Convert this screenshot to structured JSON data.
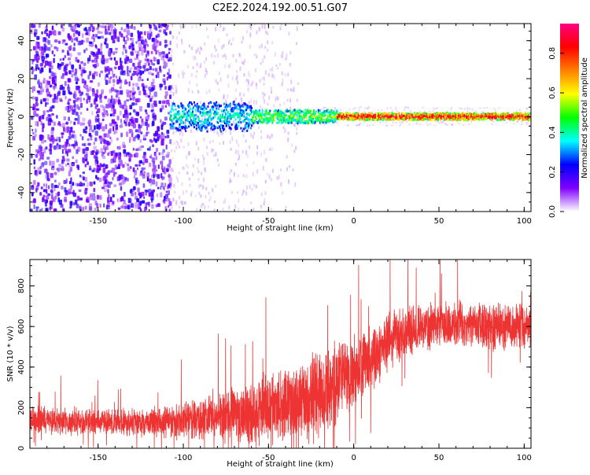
{
  "title": "C2E2.2024.192.00.51.G07",
  "chart_data": [
    {
      "type": "heatmap",
      "xlabel": "Height of straight line (km)",
      "ylabel": "Frequency (Hz)",
      "xlim": [
        -190,
        104
      ],
      "ylim": [
        -50,
        49
      ],
      "x_ticks": [
        -150,
        -100,
        -50,
        0,
        50,
        100
      ],
      "x_tick_labels": [
        "-150",
        "-100",
        "-50",
        "0",
        "50",
        "100"
      ],
      "y_ticks": [
        -40,
        -20,
        0,
        20,
        40
      ],
      "y_tick_labels": [
        "-40",
        "-20",
        "0",
        "20",
        "40"
      ],
      "colorbar": {
        "label": "Normalized spectral amplitude",
        "range": [
          0.0,
          0.95
        ],
        "ticks": [
          0.0,
          0.2,
          0.4,
          0.6,
          0.8
        ],
        "tick_labels": [
          "0.0",
          "0.2",
          "0.4",
          "0.6",
          "0.8"
        ],
        "colors": [
          "#ffffff",
          "#8000ff",
          "#0000ff",
          "#00ffff",
          "#00ff00",
          "#ffff00",
          "#ff8000",
          "#ff0000",
          "#ff0080"
        ]
      },
      "regions": [
        {
          "x_range": [
            -190,
            -108
          ],
          "f_range": [
            -50,
            49
          ],
          "amplitude": 0.1,
          "description_level": "scattered noise"
        },
        {
          "x_range": [
            -108,
            -60
          ],
          "f_range": [
            -8,
            8
          ],
          "amplitude": 0.3
        },
        {
          "x_range": [
            -60,
            -10
          ],
          "f_range": [
            -4,
            4
          ],
          "amplitude": 0.45
        },
        {
          "x_range": [
            -10,
            104
          ],
          "f_range": [
            -2,
            2
          ],
          "amplitude": 0.85
        }
      ]
    },
    {
      "type": "line",
      "xlabel": "Height of straight line (km)",
      "ylabel": "SNR (10 * v/v)",
      "xlim": [
        -190,
        104
      ],
      "ylim": [
        0,
        930
      ],
      "color": "#ee3333",
      "x_ticks": [
        -150,
        -100,
        -50,
        0,
        50,
        100
      ],
      "x_tick_labels": [
        "-150",
        "-100",
        "-50",
        "0",
        "50",
        "100"
      ],
      "y_ticks": [
        0,
        200,
        400,
        600,
        800
      ],
      "y_tick_labels": [
        "0",
        "200",
        "400",
        "600",
        "800"
      ],
      "trend": {
        "x": [
          -190,
          -150,
          -120,
          -100,
          -80,
          -60,
          -40,
          -25,
          -10,
          0,
          10,
          20,
          30,
          40,
          60,
          80,
          104
        ],
        "mean": [
          140,
          130,
          125,
          140,
          160,
          180,
          210,
          250,
          320,
          380,
          440,
          520,
          570,
          600,
          610,
          600,
          600
        ],
        "spread": [
          80,
          80,
          80,
          110,
          150,
          180,
          220,
          260,
          240,
          200,
          180,
          170,
          160,
          140,
          130,
          130,
          130
        ]
      }
    }
  ]
}
